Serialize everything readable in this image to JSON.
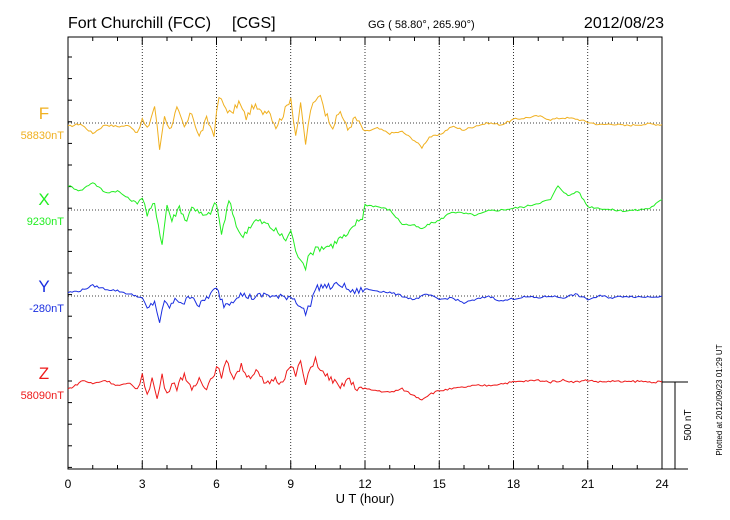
{
  "header": {
    "station": "Fort Churchill (FCC)",
    "network": "[CGS]",
    "coords": "GG ( 58.80°, 265.90°)",
    "date": "2012/08/23"
  },
  "footer": {
    "plotted": "Plotted at 2012/09/23 01:29 UT"
  },
  "scale_bar_label": "500 nT",
  "chart_data": {
    "type": "line",
    "title": "Fort Churchill (FCC)  [CGS]",
    "xlabel": "U T (hour)",
    "ylabel": "",
    "xlim": [
      0,
      24
    ],
    "xticks": [
      0,
      3,
      6,
      9,
      12,
      15,
      18,
      21,
      24
    ],
    "xtick_labels": [
      "0",
      "3",
      "6",
      "9",
      "12",
      "15",
      "18",
      "21",
      "24"
    ],
    "grid": true,
    "scale_nT": 500,
    "series": [
      {
        "name": "F",
        "baseline_label": "58830nT",
        "color": "#f0b020",
        "x": [
          0,
          0.5,
          1,
          1.5,
          2,
          2.5,
          2.8,
          3,
          3.2,
          3.5,
          3.7,
          3.9,
          4.1,
          4.4,
          4.7,
          5,
          5.3,
          5.6,
          5.9,
          6.1,
          6.3,
          6.6,
          6.9,
          7.2,
          7.5,
          7.8,
          8.1,
          8.4,
          8.7,
          9,
          9.2,
          9.4,
          9.6,
          9.8,
          10,
          10.2,
          10.4,
          10.7,
          11,
          11.3,
          11.6,
          12,
          12.5,
          13,
          13.5,
          14,
          14.3,
          14.6,
          15,
          15.5,
          16,
          16.5,
          17,
          17.5,
          18,
          18.5,
          19,
          19.5,
          20,
          20.5,
          21,
          21.5,
          22,
          22.5,
          23,
          23.5,
          24
        ],
        "values": [
          -20,
          -5,
          -60,
          -10,
          -20,
          -15,
          -60,
          20,
          -40,
          100,
          -150,
          50,
          -40,
          80,
          -30,
          60,
          -80,
          20,
          -60,
          150,
          100,
          50,
          120,
          30,
          100,
          60,
          80,
          -20,
          50,
          150,
          -70,
          100,
          -120,
          80,
          120,
          170,
          60,
          -20,
          70,
          -40,
          30,
          -50,
          -30,
          -60,
          -50,
          -100,
          -140,
          -80,
          -70,
          -20,
          -40,
          -15,
          0,
          -10,
          20,
          30,
          40,
          20,
          30,
          25,
          5,
          -10,
          -5,
          -15,
          -10,
          -5,
          -10
        ]
      },
      {
        "name": "X",
        "baseline_label": "9230nT",
        "color": "#22ee22",
        "x": [
          0,
          0.5,
          1,
          1.5,
          2,
          2.5,
          2.8,
          3,
          3.2,
          3.5,
          3.8,
          4,
          4.2,
          4.5,
          4.8,
          5,
          5.3,
          5.6,
          6,
          6.2,
          6.5,
          6.8,
          7,
          7.3,
          7.6,
          8,
          8.4,
          8.8,
          9,
          9.2,
          9.4,
          9.6,
          9.7,
          9.9,
          10.1,
          10.4,
          10.7,
          11,
          11.3,
          11.6,
          11.9,
          12,
          12.5,
          13,
          13.5,
          14,
          14.3,
          14.6,
          15,
          15.5,
          16,
          16.5,
          17,
          17.5,
          18,
          18.5,
          19,
          19.5,
          19.8,
          20.2,
          20.6,
          21,
          21.5,
          22,
          22.5,
          23,
          23.5,
          24
        ],
        "values": [
          140,
          110,
          160,
          100,
          110,
          60,
          40,
          80,
          -30,
          40,
          -200,
          30,
          -60,
          20,
          -70,
          30,
          -20,
          -40,
          40,
          -140,
          50,
          -80,
          -160,
          -100,
          -60,
          -80,
          -120,
          -170,
          -120,
          -230,
          -300,
          -330,
          -250,
          -240,
          -220,
          -210,
          -200,
          -160,
          -150,
          -80,
          -40,
          30,
          20,
          0,
          -80,
          -90,
          -110,
          -80,
          -60,
          -10,
          -20,
          -30,
          -5,
          0,
          10,
          20,
          40,
          60,
          140,
          80,
          110,
          20,
          10,
          0,
          -5,
          0,
          10,
          60
        ]
      },
      {
        "name": "Y",
        "baseline_label": "-280nT",
        "color": "#1a2ee0",
        "x": [
          0,
          0.5,
          1,
          1.5,
          2,
          2.5,
          2.8,
          3,
          3.2,
          3.5,
          3.7,
          3.9,
          4.1,
          4.4,
          4.7,
          5,
          5.3,
          5.6,
          6,
          6.3,
          6.6,
          6.9,
          7.2,
          7.5,
          8,
          8.5,
          9,
          9.3,
          9.6,
          9.8,
          10,
          10.3,
          10.6,
          11,
          11.5,
          12,
          12.5,
          13,
          13.5,
          14,
          14.5,
          15,
          15.5,
          16,
          16.5,
          17,
          17.5,
          18,
          18.5,
          19,
          19.5,
          20,
          20.5,
          21,
          21.5,
          22,
          22.5,
          23,
          23.5,
          24
        ],
        "values": [
          20,
          30,
          60,
          40,
          30,
          10,
          0,
          -20,
          -80,
          -30,
          -150,
          -40,
          -60,
          -20,
          -40,
          10,
          -60,
          -10,
          40,
          -50,
          -30,
          10,
          0,
          -10,
          10,
          -10,
          0,
          -40,
          -100,
          -40,
          40,
          60,
          50,
          70,
          20,
          40,
          30,
          20,
          0,
          -20,
          10,
          -20,
          -10,
          -40,
          -20,
          0,
          -30,
          -15,
          -5,
          -10,
          0,
          -10,
          10,
          -20,
          0,
          -10,
          0,
          -5,
          -5,
          0
        ]
      },
      {
        "name": "Z",
        "baseline_label": "58090nT",
        "color": "#ee1a1a",
        "x": [
          0,
          0.3,
          0.6,
          1,
          1.5,
          2,
          2.5,
          2.8,
          3,
          3.2,
          3.4,
          3.6,
          3.8,
          4,
          4.2,
          4.4,
          4.7,
          5,
          5.3,
          5.6,
          6,
          6.2,
          6.4,
          6.7,
          7,
          7.3,
          7.6,
          8,
          8.3,
          8.6,
          9,
          9.2,
          9.4,
          9.6,
          9.8,
          10,
          10.2,
          10.4,
          10.7,
          11,
          11.3,
          11.6,
          12,
          12.5,
          13,
          13.5,
          14,
          14.3,
          14.6,
          15,
          15.5,
          16,
          16.5,
          17,
          17.5,
          18,
          18.5,
          19,
          19.5,
          20,
          20.5,
          21,
          21.5,
          22,
          22.5,
          23,
          23.5,
          24
        ],
        "values": [
          -40,
          -20,
          10,
          -10,
          10,
          -20,
          -10,
          -40,
          30,
          -60,
          20,
          -100,
          40,
          -80,
          10,
          -30,
          50,
          -60,
          20,
          -30,
          80,
          40,
          110,
          30,
          90,
          30,
          60,
          -20,
          20,
          0,
          90,
          40,
          120,
          -20,
          80,
          140,
          60,
          40,
          10,
          -40,
          20,
          -30,
          -40,
          -50,
          -60,
          -40,
          -80,
          -100,
          -70,
          -50,
          -40,
          -30,
          -20,
          -20,
          -10,
          0,
          5,
          10,
          0,
          10,
          0,
          10,
          0,
          5,
          0,
          5,
          0,
          0
        ]
      }
    ]
  }
}
